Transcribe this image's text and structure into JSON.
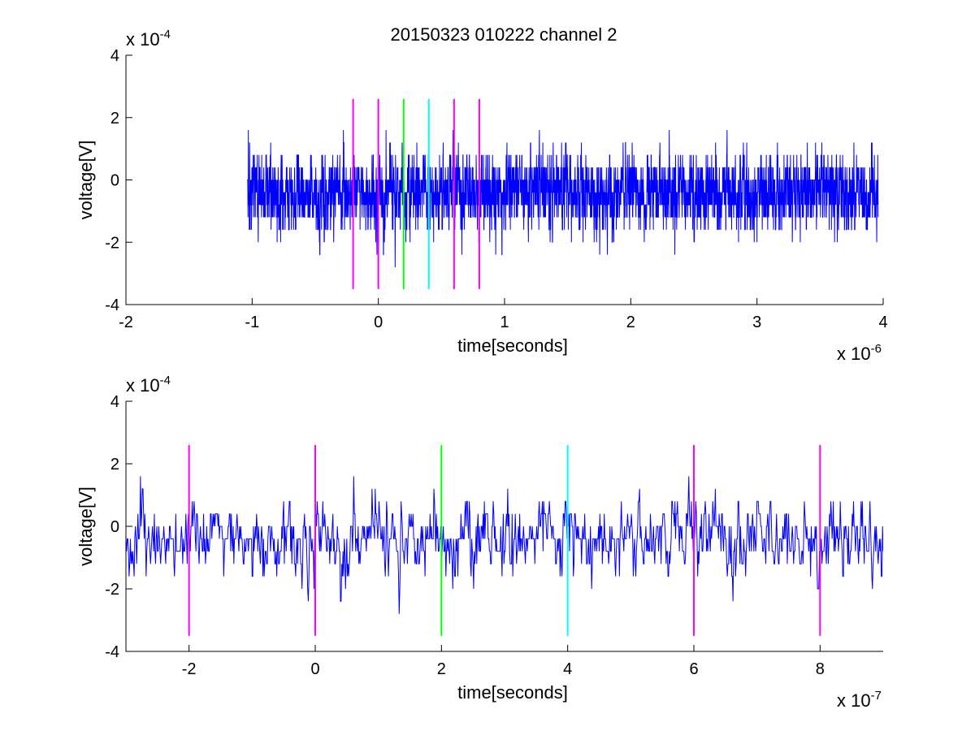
{
  "title": "20150323 010222 channel 2",
  "chart_data": [
    {
      "type": "line",
      "xlabel": "time[seconds]",
      "ylabel": "voltage[V]",
      "xlim": [
        -2e-06,
        4e-06
      ],
      "ylim": [
        -0.0004,
        0.0004
      ],
      "x_ticks": [
        -2e-06,
        -1e-06,
        0,
        1e-06,
        2e-06,
        3e-06,
        4e-06
      ],
      "x_tick_labels": [
        "-2",
        "-1",
        "0",
        "1",
        "2",
        "3",
        "4"
      ],
      "y_ticks": [
        -0.0004,
        -0.0002,
        0,
        0.0002,
        0.0004
      ],
      "y_tick_labels": [
        "-4",
        "-2",
        "0",
        "2",
        "4"
      ],
      "x_exponent": {
        "base": "x 10",
        "power": "-6"
      },
      "y_exponent": {
        "base": "x 10",
        "power": "-4"
      },
      "series": [
        {
          "color": "#0000ff",
          "description": "noise waveform, 5000 samples from -1.04e-6 s to 3.96e-6 s at 1 ns step; values quantized to multiples of 0.4e-4 V, mostly in [-2.4e-4, 1.6e-4], occasional excursions to -3.2e-4",
          "x_start": -1.04e-06,
          "x_end": 3.96e-06,
          "quantum": 4e-05,
          "y_mean": -4e-05
        }
      ],
      "markers": [
        {
          "x": -2e-07,
          "y_range": [
            -0.00035,
            0.00026
          ],
          "color": "#ff00ff"
        },
        {
          "x": 0,
          "y_range": [
            -0.00035,
            0.00026
          ],
          "color": "#ff00ff"
        },
        {
          "x": 2e-07,
          "y_range": [
            -0.00035,
            0.00026
          ],
          "color": "#00ff00"
        },
        {
          "x": 4e-07,
          "y_range": [
            -0.00035,
            0.00026
          ],
          "color": "#00ffff"
        },
        {
          "x": 6e-07,
          "y_range": [
            -0.00035,
            0.00026
          ],
          "color": "#ff00ff"
        },
        {
          "x": 8e-07,
          "y_range": [
            -0.00035,
            0.00026
          ],
          "color": "#ff00ff"
        }
      ]
    },
    {
      "type": "line",
      "xlabel": "time[seconds]",
      "ylabel": "voltage[V]",
      "xlim": [
        -3e-07,
        9e-07
      ],
      "ylim": [
        -0.0004,
        0.0004
      ],
      "x_ticks": [
        -2e-07,
        0,
        2e-07,
        4e-07,
        6e-07,
        8e-07
      ],
      "x_tick_labels": [
        "-2",
        "0",
        "2",
        "4",
        "6",
        "8"
      ],
      "y_ticks": [
        -0.0004,
        -0.0002,
        0,
        0.0002,
        0.0004
      ],
      "y_tick_labels": [
        "-4",
        "-2",
        "0",
        "2",
        "4"
      ],
      "x_exponent": {
        "base": "x 10",
        "power": "-7"
      },
      "y_exponent": {
        "base": "x 10",
        "power": "-4"
      },
      "series": [
        {
          "color": "#0000ff",
          "description": "zoomed view of the same waveform, -3e-7 s to 9e-7 s",
          "x_start": -3e-07,
          "x_end": 9e-07,
          "quantum": 4e-05,
          "y_mean": -4e-05
        }
      ],
      "markers": [
        {
          "x": -2e-07,
          "y_range": [
            -0.00035,
            0.00026
          ],
          "color": "#ff00ff"
        },
        {
          "x": 0,
          "y_range": [
            -0.00035,
            0.00026
          ],
          "color": "#ff00ff"
        },
        {
          "x": 2e-07,
          "y_range": [
            -0.00035,
            0.00026
          ],
          "color": "#00ff00"
        },
        {
          "x": 4e-07,
          "y_range": [
            -0.00035,
            0.00026
          ],
          "color": "#00ffff"
        },
        {
          "x": 6e-07,
          "y_range": [
            -0.00035,
            0.00026
          ],
          "color": "#ff00ff"
        },
        {
          "x": 8e-07,
          "y_range": [
            -0.00035,
            0.00026
          ],
          "color": "#ff00ff"
        }
      ]
    }
  ]
}
